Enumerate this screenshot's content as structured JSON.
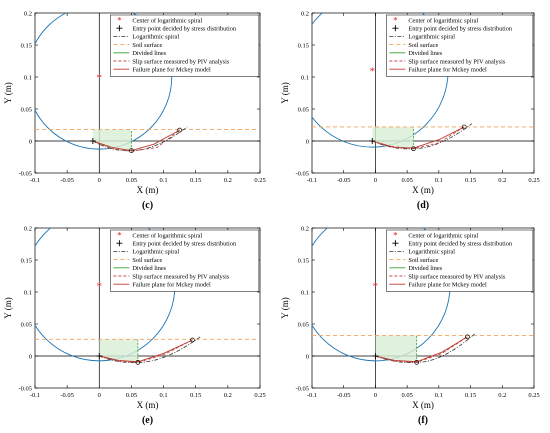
{
  "colors": {
    "spiral": "#1f77b4",
    "soil": "#f4a259",
    "divided": "#2ca02c",
    "fill": "#d8efd6",
    "piv": "#c0504d",
    "mckey": "#c0392b",
    "center": "#e41a1c"
  },
  "legend_labels": {
    "center": "Center of logarithmic spiral",
    "entry": "Entry point decided by stress distribution",
    "spiral": "Logarithmic spiral",
    "soil": "Soil surface",
    "divided": "Divided lines",
    "piv": "Slip surface measured by PIV analysis",
    "mckey": "Failure plane for Mckey model"
  },
  "chart_data": [
    {
      "type": "line",
      "panel_label": "(c)",
      "xlabel": "X (m)",
      "ylabel": "Y (m)",
      "xlim": [
        -0.1,
        0.25
      ],
      "ylim": [
        -0.05,
        0.2
      ],
      "xticks": [
        "-0.1",
        "-0.05",
        "0",
        "0.05",
        "0.1",
        "0.15",
        "0.2",
        "0.25"
      ],
      "yticks": [
        "-0.05",
        "0",
        "0.05",
        "0.1",
        "0.15",
        "0.2"
      ],
      "spiral_center": [
        0.0,
        0.1
      ],
      "entry_point": [
        -0.01,
        0.0
      ],
      "soil_surface_y": 0.018,
      "failure_end": [
        0.125,
        0.017
      ],
      "spiral_min": [
        0.05,
        -0.015
      ],
      "piv": [
        [
          -0.01,
          0.0
        ],
        [
          0.02,
          -0.012
        ],
        [
          0.05,
          -0.016
        ],
        [
          0.09,
          -0.01
        ],
        [
          0.125,
          0.017
        ]
      ],
      "mckey": [
        [
          -0.01,
          0.0
        ],
        [
          0.02,
          -0.01
        ],
        [
          0.05,
          -0.015
        ],
        [
          0.085,
          -0.005
        ],
        [
          0.125,
          0.017
        ]
      ]
    },
    {
      "type": "line",
      "panel_label": "(d)",
      "xlabel": "X (m)",
      "ylabel": "Y (m)",
      "xlim": [
        -0.1,
        0.25
      ],
      "ylim": [
        -0.05,
        0.2
      ],
      "xticks": [
        "-0.1",
        "-0.05",
        "0",
        "0.05",
        "0.1",
        "0.15",
        "0.2",
        "0.25"
      ],
      "yticks": [
        "-0.05",
        "0",
        "0.05",
        "0.1",
        "0.15",
        "0.2"
      ],
      "spiral_center": [
        -0.005,
        0.11
      ],
      "entry_point": [
        -0.005,
        0.0
      ],
      "soil_surface_y": 0.022,
      "failure_end": [
        0.14,
        0.022
      ],
      "spiral_min": [
        0.06,
        -0.012
      ],
      "piv": [
        [
          -0.005,
          0.0
        ],
        [
          0.02,
          -0.008
        ],
        [
          0.06,
          -0.012
        ],
        [
          0.1,
          -0.003
        ],
        [
          0.14,
          0.022
        ]
      ],
      "mckey": [
        [
          -0.005,
          0.0
        ],
        [
          0.03,
          -0.01
        ],
        [
          0.06,
          -0.011
        ],
        [
          0.1,
          0.002
        ],
        [
          0.14,
          0.022
        ]
      ]
    },
    {
      "type": "line",
      "panel_label": "(e)",
      "xlabel": "X (m)",
      "ylabel": "Y (m)",
      "xlim": [
        -0.1,
        0.25
      ],
      "ylim": [
        -0.05,
        0.2
      ],
      "xticks": [
        "-0.1",
        "-0.05",
        "0",
        "0.05",
        "0.1",
        "0.15",
        "0.2",
        "0.25"
      ],
      "yticks": [
        "-0.05",
        "0",
        "0.05",
        "0.1",
        "0.15",
        "0.2"
      ],
      "spiral_center": [
        0.0,
        0.11
      ],
      "entry_point": [
        0.0,
        0.0
      ],
      "soil_surface_y": 0.026,
      "failure_end": [
        0.145,
        0.025
      ],
      "spiral_min": [
        0.06,
        -0.01
      ],
      "piv": [
        [
          0.0,
          0.0
        ],
        [
          0.03,
          -0.008
        ],
        [
          0.06,
          -0.01
        ],
        [
          0.1,
          0.002
        ],
        [
          0.145,
          0.025
        ]
      ],
      "mckey": [
        [
          0.0,
          0.0
        ],
        [
          0.03,
          -0.007
        ],
        [
          0.06,
          -0.009
        ],
        [
          0.1,
          0.004
        ],
        [
          0.145,
          0.025
        ]
      ]
    },
    {
      "type": "line",
      "panel_label": "(f)",
      "xlabel": "X (m)",
      "ylabel": "Y (m)",
      "xlim": [
        -0.1,
        0.25
      ],
      "ylim": [
        -0.05,
        0.2
      ],
      "xticks": [
        "-0.1",
        "-0.05",
        "0",
        "0.05",
        "0.1",
        "0.15",
        "0.2",
        "0.25"
      ],
      "yticks": [
        "-0.05",
        "0",
        "0.05",
        "0.1",
        "0.15",
        "0.2"
      ],
      "spiral_center": [
        0.0,
        0.11
      ],
      "entry_point": [
        0.0,
        0.0
      ],
      "soil_surface_y": 0.032,
      "failure_end": [
        0.145,
        0.03
      ],
      "spiral_min": [
        0.065,
        -0.01
      ],
      "piv": [
        [
          0.0,
          0.0
        ],
        [
          0.03,
          -0.008
        ],
        [
          0.065,
          -0.01
        ],
        [
          0.105,
          0.004
        ],
        [
          0.145,
          0.03
        ]
      ],
      "mckey": [
        [
          0.0,
          0.0
        ],
        [
          0.03,
          -0.007
        ],
        [
          0.065,
          -0.009
        ],
        [
          0.105,
          0.006
        ],
        [
          0.145,
          0.03
        ]
      ]
    }
  ]
}
